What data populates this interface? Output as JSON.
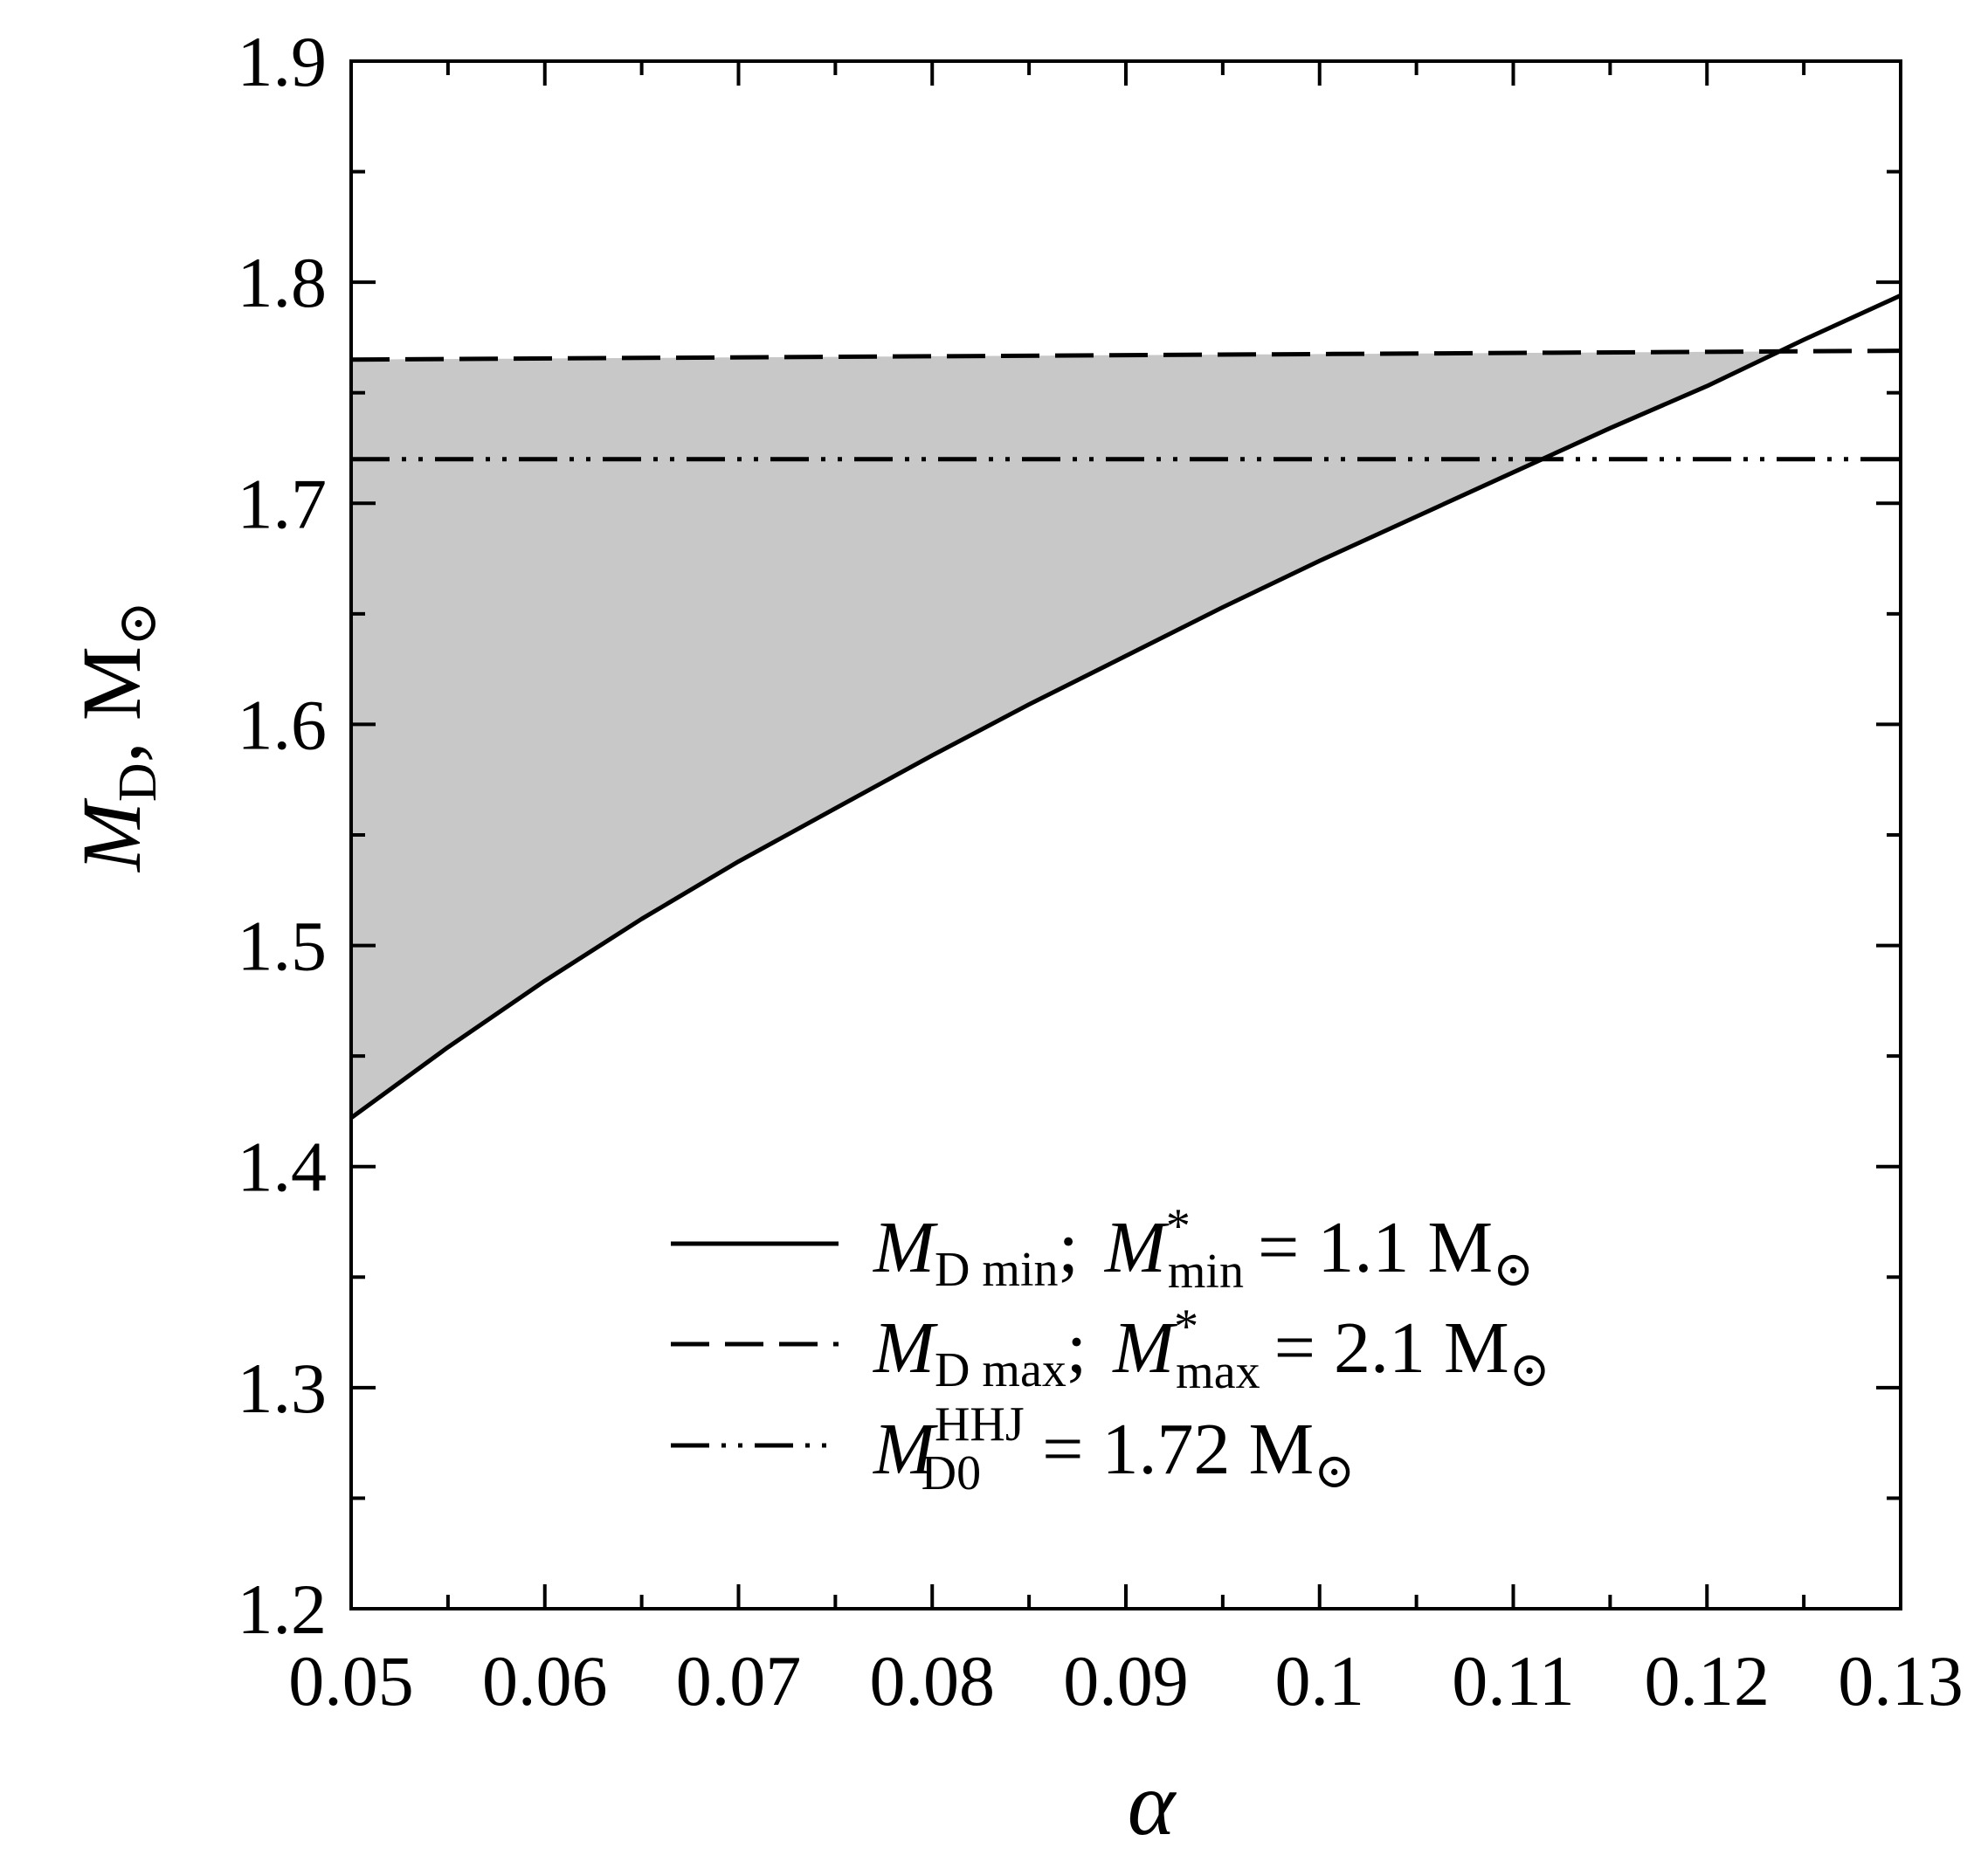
{
  "chart_data": {
    "type": "line",
    "xlabel": "α",
    "ylabel": "M_D, M_⊙",
    "xlim": [
      0.05,
      0.13
    ],
    "ylim": [
      1.2,
      1.9
    ],
    "xticks": [
      0.05,
      0.06,
      0.07,
      0.08,
      0.09,
      0.1,
      0.11,
      0.12,
      0.13
    ],
    "xtick_labels": [
      "0.05",
      "0.06",
      "0.07",
      "0.08",
      "0.09",
      "0.1",
      "0.11",
      "0.12",
      "0.13"
    ],
    "yticks": [
      1.2,
      1.3,
      1.4,
      1.5,
      1.6,
      1.7,
      1.8,
      1.9
    ],
    "ytick_labels": [
      "1.2",
      "1.3",
      "1.4",
      "1.5",
      "1.6",
      "1.7",
      "1.8",
      "1.9"
    ],
    "grid": false,
    "legend_position": "bottom-right",
    "shaded_region": {
      "color": "#c8c8c8",
      "between": [
        "M_D min",
        "M_D max"
      ]
    },
    "series": [
      {
        "name": "M_D min; M*_min = 1.1 M_⊙",
        "style": "solid",
        "x": [
          0.05,
          0.055,
          0.06,
          0.065,
          0.07,
          0.075,
          0.08,
          0.085,
          0.09,
          0.095,
          0.1,
          0.105,
          0.11,
          0.115,
          0.12,
          0.125,
          0.13
        ],
        "y": [
          1.422,
          1.454,
          1.484,
          1.512,
          1.538,
          1.562,
          1.586,
          1.609,
          1.631,
          1.653,
          1.674,
          1.694,
          1.714,
          1.734,
          1.753,
          1.774,
          1.794
        ]
      },
      {
        "name": "M_D max; M*_max = 2.1 M_⊙",
        "style": "dashed",
        "x": [
          0.05,
          0.13
        ],
        "y": [
          1.765,
          1.769
        ]
      },
      {
        "name": "M_D0^HHJ = 1.72 M_⊙",
        "style": "dash-dot-dot",
        "x": [
          0.05,
          0.13
        ],
        "y": [
          1.72,
          1.72
        ]
      }
    ]
  },
  "legend": {
    "entries": [
      {
        "main": "M",
        "sub": "D min",
        "sep": ";",
        "main2": "M",
        "sup2": "*",
        "sub2": "min",
        "eq": "= 1.1 M",
        "sun_sub": "⊙"
      },
      {
        "main": "M",
        "sub": "D max",
        "sep": ";",
        "main2": "M",
        "sup2": "*",
        "sub2": "max",
        "eq": "= 2.1 M",
        "sun_sub": "⊙"
      },
      {
        "main": "M",
        "sub": "D0",
        "sup": "HHJ",
        "eq": "= 1.72 M",
        "sun_sub": "⊙"
      }
    ]
  },
  "ylabel_parts": {
    "main": "M",
    "sub": "D",
    "rest": ", M",
    "sun": "⊙"
  },
  "xlabel_text": "α"
}
